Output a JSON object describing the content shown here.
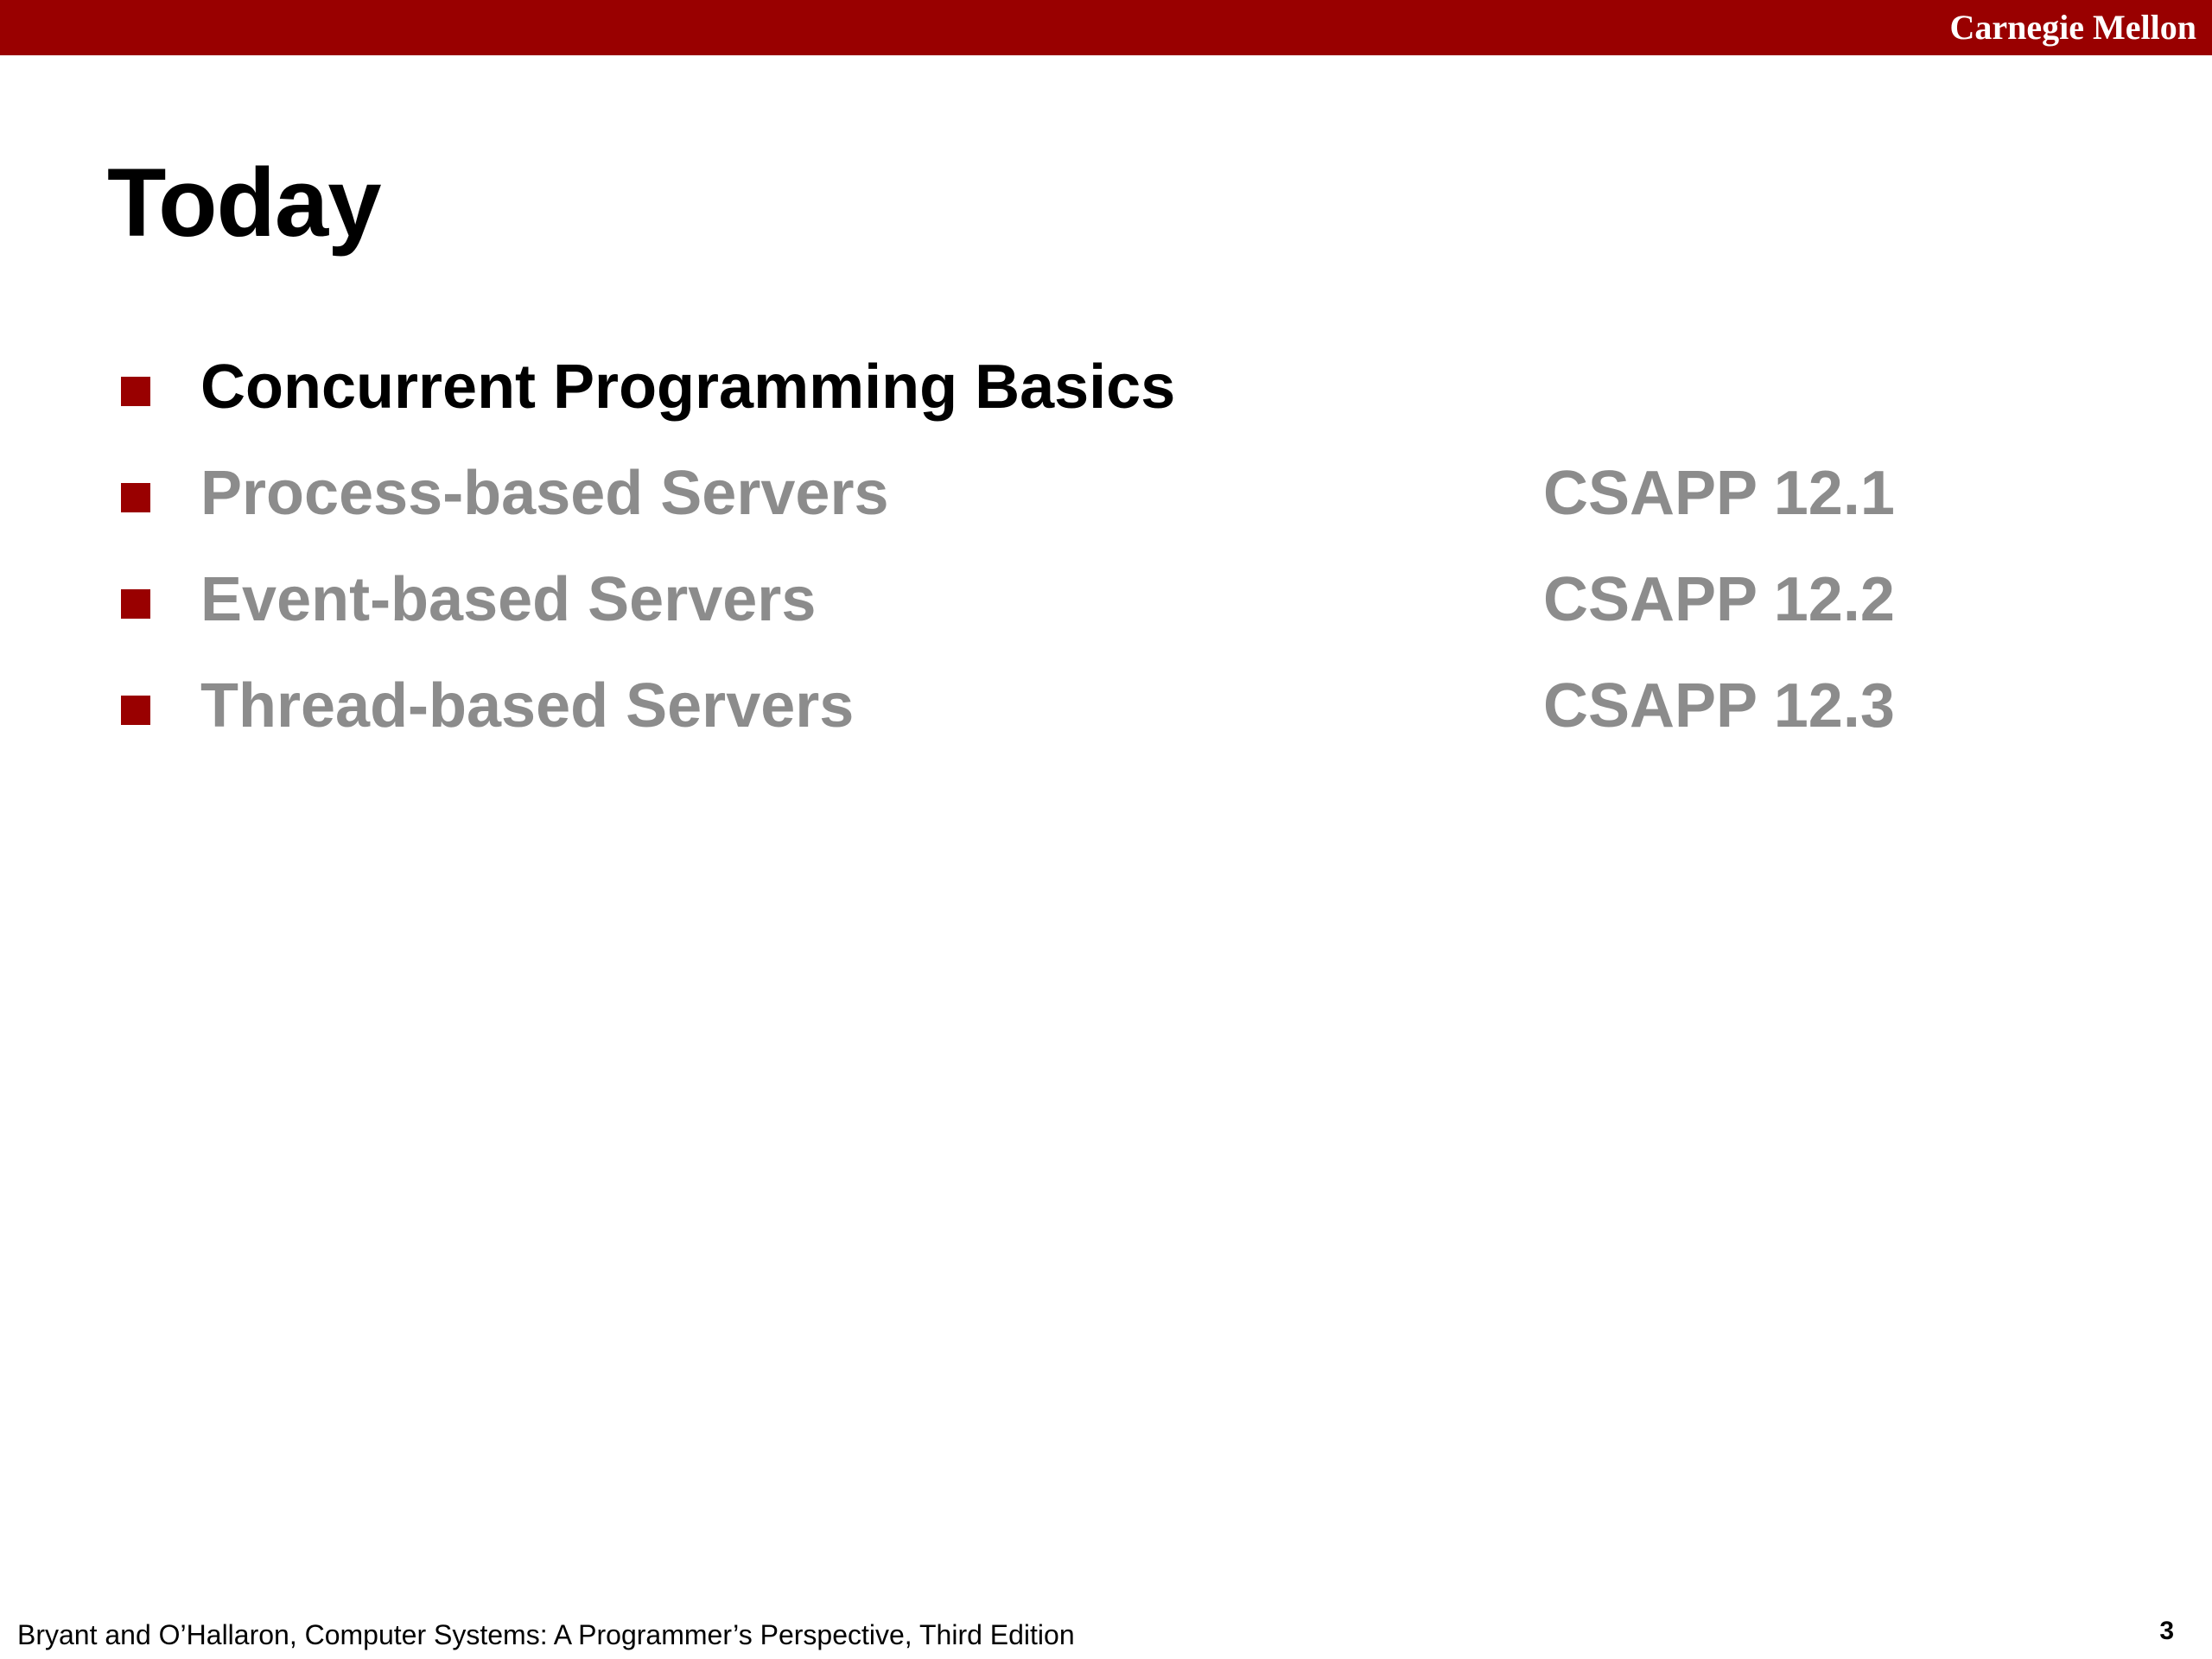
{
  "header": {
    "brand": "Carnegie Mellon",
    "bar_color": "#990000"
  },
  "slide": {
    "title": "Today",
    "items": [
      {
        "label": "Concurrent Programming Basics",
        "reference": "",
        "state": "current"
      },
      {
        "label": "Process-based Servers",
        "reference": "CSAPP 12.1",
        "state": "dimmed"
      },
      {
        "label": "Event-based Servers",
        "reference": "CSAPP 12.2",
        "state": "dimmed"
      },
      {
        "label": "Thread-based Servers",
        "reference": "CSAPP 12.3",
        "state": "dimmed"
      }
    ],
    "bullet_color": "#990000",
    "dimmed_text_color": "#8c8c8c"
  },
  "footer": {
    "citation": "Bryant and O’Hallaron, Computer Systems: A Programmer’s Perspective, Third Edition",
    "page_number": "3"
  }
}
